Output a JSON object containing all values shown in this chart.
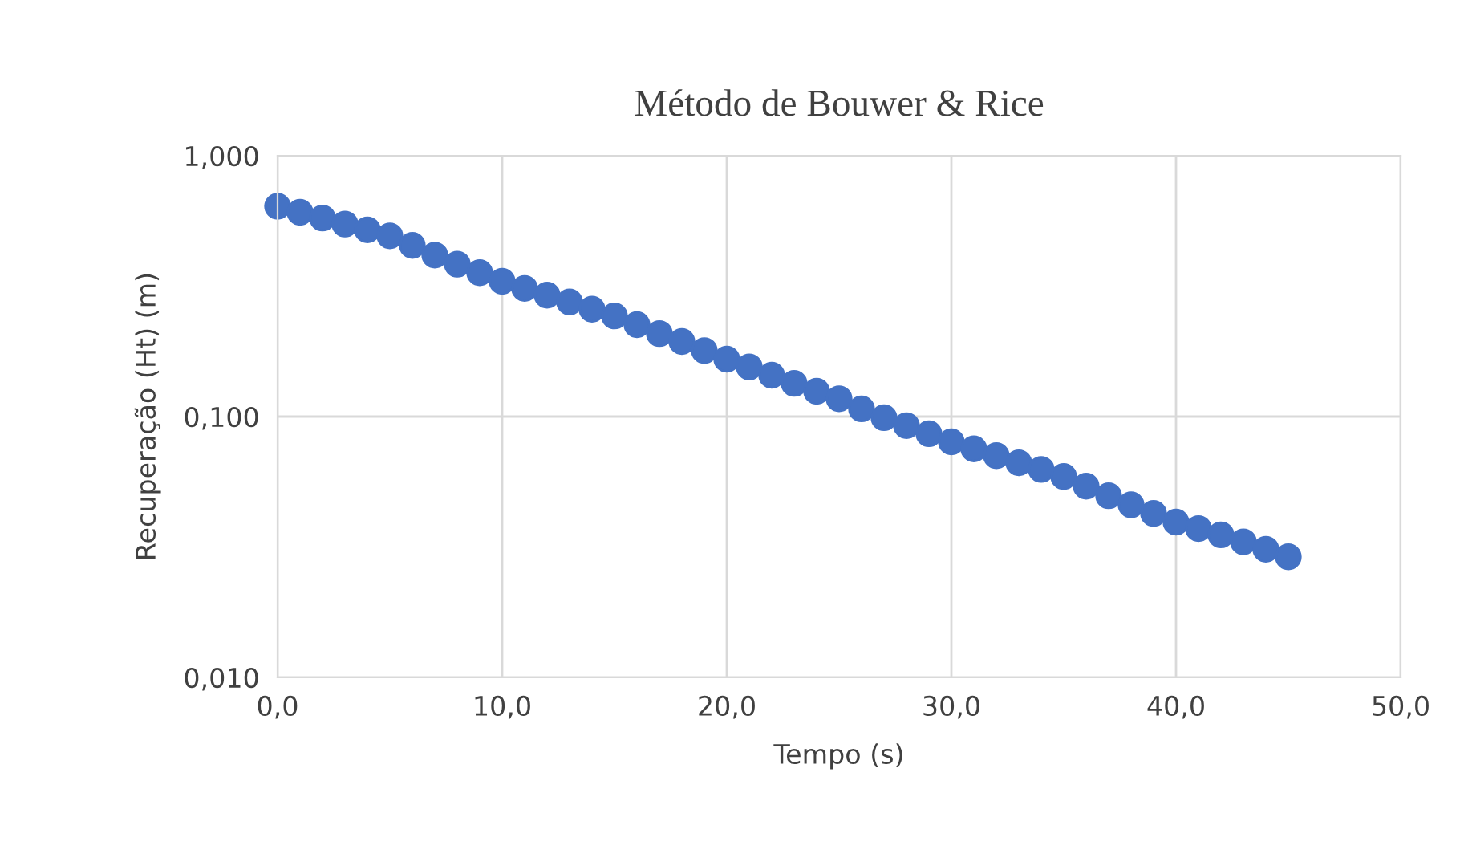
{
  "chart_data": {
    "type": "scatter",
    "title": "Método de Bouwer & Rice",
    "xlabel": "Tempo (s)",
    "ylabel": "Recuperação (Ht) (m)",
    "x": [
      0,
      1,
      2,
      3,
      4,
      5,
      6,
      7,
      8,
      9,
      10,
      11,
      12,
      13,
      14,
      15,
      16,
      17,
      18,
      19,
      20,
      21,
      22,
      23,
      24,
      25,
      26,
      27,
      28,
      29,
      30,
      31,
      32,
      33,
      34,
      35,
      36,
      37,
      38,
      39,
      40,
      41,
      42,
      43,
      44,
      45
    ],
    "series": [
      {
        "color": "#4472c4",
        "values": [
          0.64,
          0.607,
          0.577,
          0.547,
          0.52,
          0.493,
          0.453,
          0.416,
          0.384,
          0.356,
          0.33,
          0.31,
          0.292,
          0.275,
          0.258,
          0.243,
          0.225,
          0.208,
          0.194,
          0.179,
          0.166,
          0.155,
          0.144,
          0.134,
          0.125,
          0.117,
          0.107,
          0.099,
          0.0923,
          0.0859,
          0.08,
          0.0752,
          0.0708,
          0.0665,
          0.0627,
          0.0589,
          0.0541,
          0.0497,
          0.0459,
          0.0425,
          0.0394,
          0.0372,
          0.0352,
          0.0331,
          0.031,
          0.029
        ]
      }
    ],
    "log": "y",
    "xlim": [
      0,
      50
    ],
    "ylim": [
      0.01,
      1
    ],
    "xticks": [
      {
        "value": 0,
        "label": "0,0"
      },
      {
        "value": 10,
        "label": "10,0"
      },
      {
        "value": 20,
        "label": "20,0"
      },
      {
        "value": 30,
        "label": "30,0"
      },
      {
        "value": 40,
        "label": "40,0"
      },
      {
        "value": 50,
        "label": "50,0"
      }
    ],
    "yticks": [
      {
        "value": 0.01,
        "label": "0,010"
      },
      {
        "value": 0.1,
        "label": "0,100"
      },
      {
        "value": 1,
        "label": "1,000"
      }
    ],
    "grid": true,
    "marker": "circle"
  }
}
